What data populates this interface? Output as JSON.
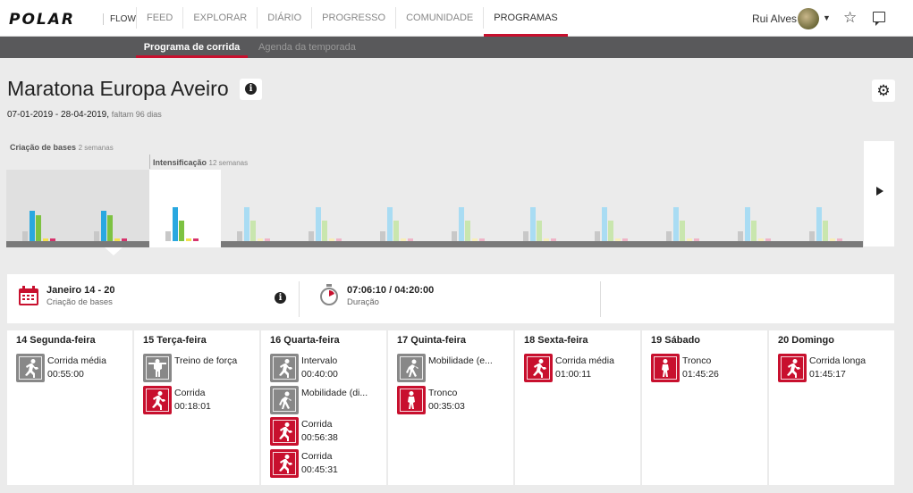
{
  "nav": {
    "logo": "POLAR",
    "flow": "FLOW",
    "links": [
      "FEED",
      "EXPLORAR",
      "DIÁRIO",
      "PROGRESSO",
      "COMUNIDADE",
      "PROGRAMAS"
    ],
    "active": "PROGRAMAS",
    "user_name": "Rui Alves"
  },
  "subnav": {
    "active_tab": "Programa de corrida",
    "other_tab": "Agenda da temporada"
  },
  "program": {
    "title": "Maratona Europa Aveiro",
    "date_range": "07-01-2019 - 28-04-2019,",
    "remaining": "faltam 96 dias"
  },
  "phases": [
    {
      "name": "Criação de bases",
      "weeks": "2 semanas"
    },
    {
      "name": "Intensificação",
      "weeks": "12 semanas"
    }
  ],
  "timeline": {
    "colors": {
      "gray": "#c8c8c8",
      "blue": "#29a8e0",
      "green": "#7dc242",
      "yellow": "#f4e04d",
      "pink": "#d6336c",
      "faded_blue": "#a9dcf3",
      "faded_green": "#c9e6ae"
    },
    "weeks": [
      {
        "state": "base",
        "values": [
          0.28,
          0.9,
          0.75,
          0.07,
          0.07
        ]
      },
      {
        "state": "base",
        "values": [
          0.28,
          0.9,
          0.75,
          0.07,
          0.07
        ]
      },
      {
        "state": "selected",
        "values": [
          0.28,
          1.0,
          0.6,
          0.07,
          0.07
        ]
      },
      {
        "state": "future",
        "values": [
          0.28,
          1.0,
          0.6,
          0.07,
          0.07
        ]
      },
      {
        "state": "future",
        "values": [
          0.28,
          1.0,
          0.6,
          0.07,
          0.07
        ]
      },
      {
        "state": "future",
        "values": [
          0.28,
          1.0,
          0.6,
          0.07,
          0.07
        ]
      },
      {
        "state": "future",
        "values": [
          0.28,
          1.0,
          0.6,
          0.07,
          0.07
        ]
      },
      {
        "state": "future",
        "values": [
          0.28,
          1.0,
          0.6,
          0.07,
          0.07
        ]
      },
      {
        "state": "future",
        "values": [
          0.28,
          1.0,
          0.6,
          0.07,
          0.07
        ]
      },
      {
        "state": "future",
        "values": [
          0.28,
          1.0,
          0.6,
          0.07,
          0.07
        ]
      },
      {
        "state": "future",
        "values": [
          0.28,
          1.0,
          0.6,
          0.07,
          0.07
        ]
      },
      {
        "state": "future",
        "values": [
          0.28,
          1.0,
          0.6,
          0.07,
          0.07
        ]
      }
    ]
  },
  "summary": {
    "week_title": "Janeiro 14 - 20",
    "week_phase": "Criação de bases",
    "duration": "07:06:10 / 04:20:00",
    "duration_label": "Duração"
  },
  "days": [
    {
      "title": "14 Segunda-feira",
      "sessions": [
        {
          "icon": "run-icon",
          "color": "gray",
          "name": "Corrida média",
          "time": "00:55:00"
        }
      ]
    },
    {
      "title": "15 Terça-feira",
      "sessions": [
        {
          "icon": "strength-icon",
          "color": "gray",
          "name": "Treino de força",
          "time": ""
        },
        {
          "icon": "run-icon",
          "color": "red",
          "name": "Corrida",
          "time": "00:18:01"
        }
      ]
    },
    {
      "title": "16 Quarta-feira",
      "sessions": [
        {
          "icon": "run-icon",
          "color": "gray",
          "name": "Intervalo",
          "time": "00:40:00"
        },
        {
          "icon": "mobility-icon",
          "color": "gray",
          "name": "Mobilidade (di...",
          "time": ""
        },
        {
          "icon": "run-icon",
          "color": "red",
          "name": "Corrida",
          "time": "00:56:38"
        },
        {
          "icon": "run-icon",
          "color": "red",
          "name": "Corrida",
          "time": "00:45:31"
        }
      ]
    },
    {
      "title": "17 Quinta-feira",
      "sessions": [
        {
          "icon": "mobility-icon",
          "color": "gray",
          "name": "Mobilidade (e...",
          "time": ""
        },
        {
          "icon": "core-icon",
          "color": "red",
          "name": "Tronco",
          "time": "00:35:03"
        }
      ]
    },
    {
      "title": "18 Sexta-feira",
      "sessions": [
        {
          "icon": "run-icon",
          "color": "red",
          "name": "Corrida média",
          "time": "01:00:11"
        }
      ]
    },
    {
      "title": "19 Sábado",
      "sessions": [
        {
          "icon": "core-icon",
          "color": "red",
          "name": "Tronco",
          "time": "01:45:26"
        }
      ]
    },
    {
      "title": "20 Domingo",
      "sessions": [
        {
          "icon": "run-icon",
          "color": "red",
          "name": "Corrida longa",
          "time": "01:45:17"
        }
      ]
    }
  ]
}
